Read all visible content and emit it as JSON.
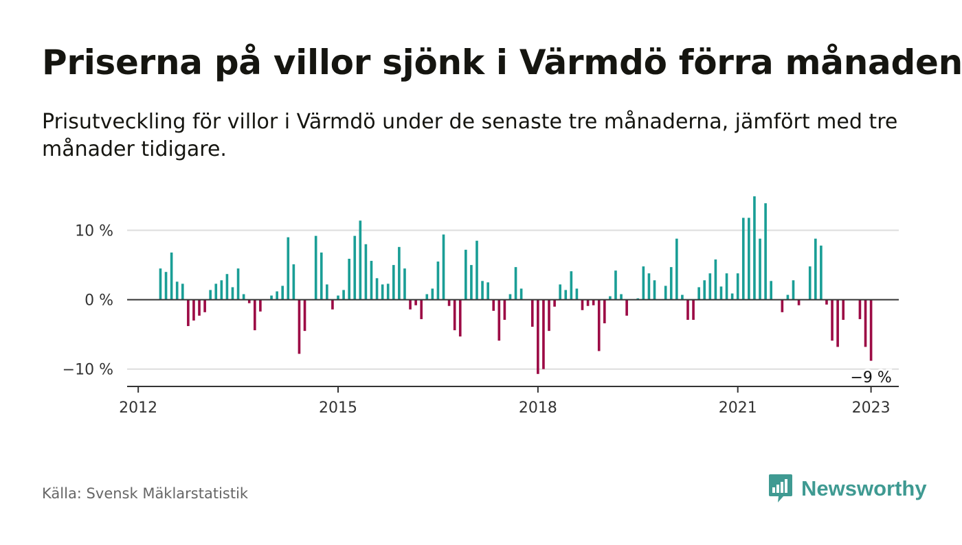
{
  "title": "Priserna på villor sjönk i Värmdö förra månaden",
  "subtitle": "Prisutveckling för villor i Värmdö under de senaste tre månaderna, jämfört med tre månader tidigare.",
  "source": "Källa: Svensk Mäklarstatistik",
  "brand": {
    "name": "Newsworthy",
    "icon": "newsworthy-logo-icon"
  },
  "colors": {
    "positive": "#1a9e96",
    "negative": "#9c0b45",
    "grid": "#dddddd",
    "axis": "#333333"
  },
  "chart_data": {
    "type": "bar",
    "title": "Priserna på villor sjönk i Värmdö förra månaden",
    "xlabel": "",
    "ylabel": "",
    "start": "2012-05",
    "frequency": "monthly",
    "ylim": [
      -12.5,
      15
    ],
    "yticks": [
      -10,
      0,
      10
    ],
    "ytick_labels": [
      "−10 %",
      "0 %",
      "10 %"
    ],
    "xticks": [
      "2012-01",
      "2015-01",
      "2018-01",
      "2021-01",
      "2023-01"
    ],
    "xtick_labels": [
      "2012",
      "2015",
      "2018",
      "2021",
      "2023"
    ],
    "x_range": [
      "2011-11",
      "2023-06"
    ],
    "grid": true,
    "annotation": {
      "x": "2023-01",
      "text": "−9 %"
    },
    "values": [
      4.5,
      4.0,
      6.8,
      2.6,
      2.3,
      -3.8,
      -3.0,
      -2.3,
      -1.8,
      1.4,
      2.3,
      2.8,
      3.7,
      1.8,
      4.5,
      0.8,
      -0.5,
      -4.4,
      -1.7,
      0,
      0.6,
      1.2,
      2.0,
      9.0,
      5.1,
      -7.8,
      -4.5,
      0,
      9.2,
      6.8,
      2.2,
      -1.4,
      0.6,
      1.4,
      5.9,
      9.2,
      11.4,
      8.0,
      5.6,
      3.1,
      2.2,
      2.3,
      5.0,
      7.6,
      4.5,
      -1.4,
      -0.8,
      -2.8,
      0.8,
      1.6,
      5.5,
      9.4,
      -0.9,
      -4.4,
      -5.3,
      7.2,
      5.0,
      8.5,
      2.7,
      2.5,
      -1.6,
      -5.9,
      -2.9,
      0.8,
      4.7,
      1.6,
      0,
      -3.9,
      -10.7,
      -10.0,
      -4.5,
      -1.0,
      2.2,
      1.4,
      4.1,
      1.6,
      -1.5,
      -0.9,
      -0.8,
      -7.4,
      -3.4,
      0.5,
      4.2,
      0.8,
      -2.3,
      0,
      0.2,
      4.8,
      3.8,
      2.8,
      0,
      2.0,
      4.7,
      8.8,
      0.7,
      -2.9,
      -2.9,
      1.8,
      2.8,
      3.8,
      5.8,
      1.9,
      3.8,
      0.9,
      3.8,
      11.8,
      11.8,
      14.9,
      8.8,
      13.9,
      2.7,
      0,
      -1.8,
      0.7,
      2.8,
      -0.8,
      0,
      4.8,
      8.8,
      7.8,
      -0.7,
      -5.9,
      -6.8,
      -2.9,
      0,
      0,
      -2.8,
      -6.8,
      -8.8
    ]
  }
}
